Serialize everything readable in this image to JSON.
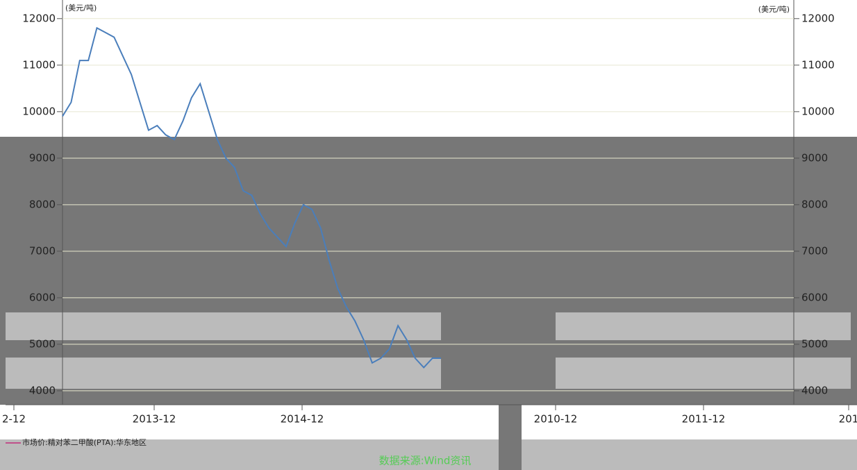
{
  "chart_data": {
    "type": "line",
    "y_unit": "(美元/吨)",
    "ylim": [
      3700,
      12400
    ],
    "yticks": [
      4000,
      5000,
      6000,
      7000,
      8000,
      9000,
      10000,
      11000,
      12000
    ],
    "x_labels": [
      "2-12",
      "2013-12",
      "2014-12",
      "2010-12",
      "2011-12",
      "201"
    ],
    "series": [
      {
        "name": "市场价:精对苯二甲酸(PTA):华东地区",
        "color": "#4a7ebb",
        "values": [
          9900,
          10200,
          11100,
          11100,
          11800,
          11700,
          11600,
          11200,
          10800,
          10200,
          9600,
          9700,
          9500,
          9400,
          9800,
          10300,
          10600,
          10000,
          9400,
          9000,
          8800,
          8300,
          8200,
          7800,
          7500,
          7300,
          7100,
          7600,
          8000,
          7900,
          7500,
          6800,
          6200,
          5800,
          5500,
          5100,
          4600,
          4700,
          4900,
          5400,
          5100,
          4700,
          4500,
          4700,
          4700
        ]
      }
    ],
    "source": "数据来源:Wind资讯"
  }
}
